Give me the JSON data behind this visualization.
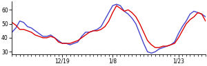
{
  "red_y": [
    51,
    49,
    46,
    46,
    45,
    44,
    42,
    41,
    40,
    40,
    41,
    40,
    37,
    36,
    36,
    36,
    37,
    38,
    40,
    42,
    44,
    45,
    45,
    46,
    48,
    52,
    58,
    63,
    61,
    59,
    60,
    58,
    55,
    50,
    44,
    38,
    35,
    33,
    33,
    34,
    34,
    35,
    36,
    40,
    45,
    50,
    53,
    55,
    58,
    57,
    52
  ],
  "blue_y": [
    44,
    47,
    52,
    51,
    48,
    47,
    45,
    43,
    41,
    41,
    42,
    40,
    38,
    36,
    36,
    35,
    36,
    37,
    41,
    44,
    44,
    45,
    46,
    48,
    53,
    58,
    63,
    64,
    63,
    59,
    57,
    54,
    50,
    43,
    36,
    30,
    29,
    30,
    32,
    33,
    34,
    35,
    37,
    43,
    48,
    52,
    57,
    59,
    58,
    57,
    55
  ],
  "xlim": [
    0,
    50
  ],
  "ylim": [
    28,
    66
  ],
  "yticks": [
    30,
    40,
    50,
    60
  ],
  "xtick_positions": [
    13,
    26,
    43
  ],
  "xtick_labels": [
    "12/19",
    "1/8",
    "1/23"
  ],
  "red_color": "#dd0000",
  "blue_color": "#4444cc",
  "bg_color": "#ffffff",
  "linewidth": 1.0
}
